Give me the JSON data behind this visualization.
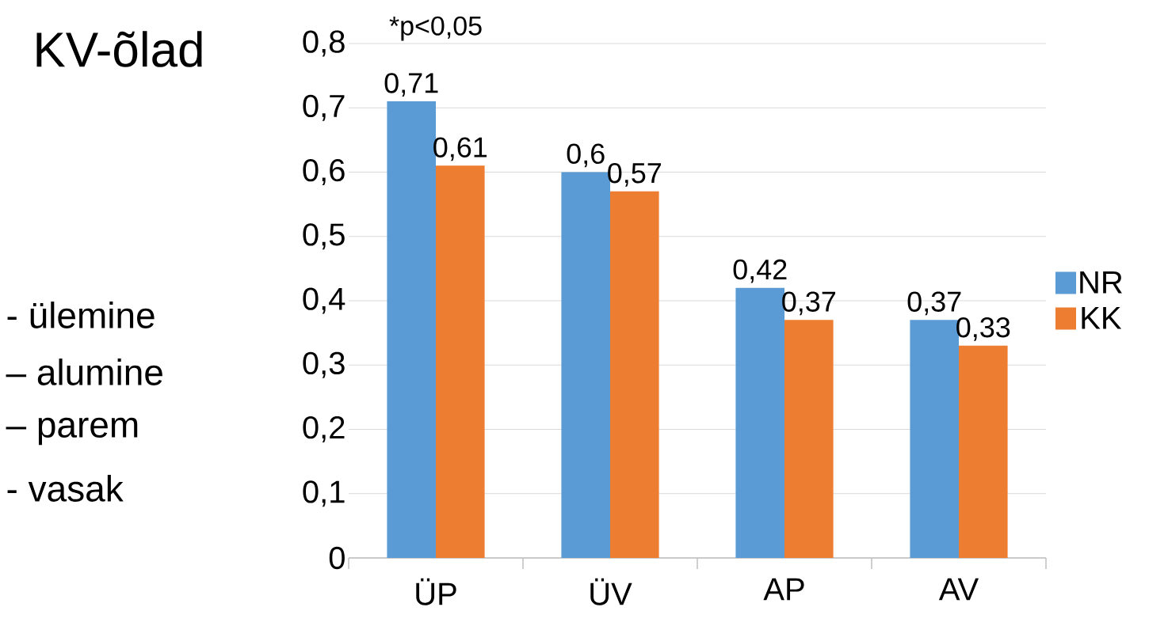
{
  "chart_data": {
    "type": "bar",
    "title": "KV-õlad",
    "categories": [
      "ÜP",
      "ÜV",
      "AP",
      "AV"
    ],
    "series": [
      {
        "name": "NR",
        "color": "#5b9bd5",
        "values": [
          0.71,
          0.6,
          0.42,
          0.37
        ],
        "value_labels": [
          "0,71",
          "0,6",
          "0,42",
          "0,37"
        ]
      },
      {
        "name": "KK",
        "color": "#ed7d31",
        "values": [
          0.61,
          0.57,
          0.37,
          0.33
        ],
        "value_labels": [
          "0,61",
          "0,57",
          "0,37",
          "0,33"
        ]
      }
    ],
    "ylim": [
      0,
      0.8
    ],
    "yticks": [
      0,
      {
        "value": 0.1,
        "label": "0,1"
      },
      {
        "value": 0.2,
        "label": "0,2"
      },
      {
        "value": 0.3,
        "label": "0,3"
      },
      {
        "value": 0.4,
        "label": "0,4"
      },
      {
        "value": 0.5,
        "label": "0,5"
      },
      {
        "value": 0.6,
        "label": "0,6"
      },
      {
        "value": 0.7,
        "label": "0,7"
      },
      {
        "value": 0.8,
        "label": "0,8"
      }
    ],
    "grid": "y",
    "legend": "right",
    "annotations": [
      "*p<0,05",
      "- ülemine",
      "– alumine",
      "– parem",
      "- vasak"
    ]
  }
}
